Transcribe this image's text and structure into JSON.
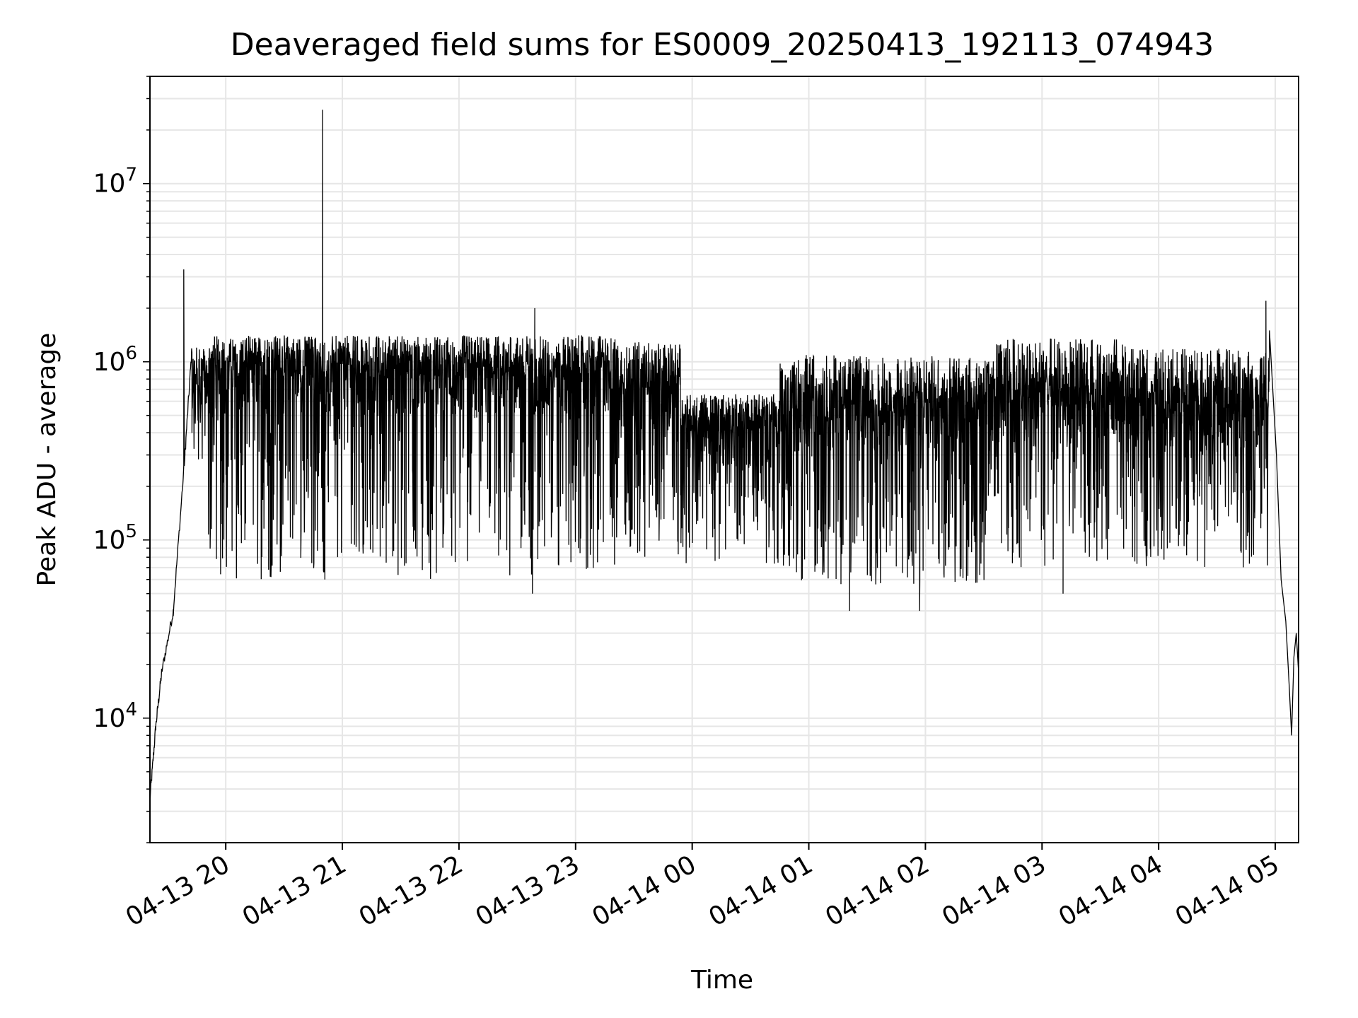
{
  "chart_data": {
    "type": "line",
    "title": "Deaveraged field sums for ES0009_20250413_192113_074943",
    "xlabel": "Time",
    "ylabel": "Peak ADU - average",
    "yscale": "log",
    "ylim": [
      2000,
      40000000
    ],
    "xlim_hours_from_20250413_1921": [
      0,
      9.85
    ],
    "grid": "major and minor",
    "line_color": "#000000",
    "x_ticks": [
      {
        "label": "04-13 20",
        "hour": 0.65
      },
      {
        "label": "04-13 21",
        "hour": 1.65
      },
      {
        "label": "04-13 22",
        "hour": 2.65
      },
      {
        "label": "04-13 23",
        "hour": 3.65
      },
      {
        "label": "04-14 00",
        "hour": 4.65
      },
      {
        "label": "04-14 01",
        "hour": 5.65
      },
      {
        "label": "04-14 02",
        "hour": 6.65
      },
      {
        "label": "04-14 03",
        "hour": 7.65
      },
      {
        "label": "04-14 04",
        "hour": 8.65
      },
      {
        "label": "04-14 05",
        "hour": 9.65
      }
    ],
    "y_ticks": [
      {
        "base": "10",
        "exp": "4",
        "value": 10000
      },
      {
        "base": "10",
        "exp": "5",
        "value": 100000
      },
      {
        "base": "10",
        "exp": "6",
        "value": 1000000
      },
      {
        "base": "10",
        "exp": "7",
        "value": 10000000
      }
    ],
    "series": [
      {
        "name": "field sums",
        "segments": [
          {
            "h0": 0.0,
            "h1": 0.05,
            "v0": 3500,
            "v1": 9000
          },
          {
            "h0": 0.05,
            "h1": 0.1,
            "v0": 9000,
            "v1": 18000
          },
          {
            "h0": 0.1,
            "h1": 0.2,
            "v0": 18000,
            "v1": 40000
          },
          {
            "h0": 0.2,
            "h1": 0.3,
            "v0": 40000,
            "v1": 300000
          },
          {
            "h0": 0.3,
            "h1": 0.36,
            "v0": 300000,
            "v1": 1200000
          }
        ],
        "noise_envelopes": [
          {
            "h0": 0.36,
            "h1": 0.5,
            "base": 700000,
            "low": 250000,
            "high": 1300000
          },
          {
            "h0": 0.5,
            "h1": 4.0,
            "base": 800000,
            "low": 60000,
            "high": 1500000
          },
          {
            "h0": 4.0,
            "h1": 4.55,
            "base": 650000,
            "low": 80000,
            "high": 1400000
          },
          {
            "h0": 4.55,
            "h1": 5.4,
            "base": 400000,
            "low": 70000,
            "high": 700000
          },
          {
            "h0": 5.4,
            "h1": 7.2,
            "base": 480000,
            "low": 55000,
            "high": 1200000
          },
          {
            "h0": 7.2,
            "h1": 8.4,
            "base": 550000,
            "low": 70000,
            "high": 1500000
          },
          {
            "h0": 8.4,
            "h1": 9.6,
            "base": 520000,
            "low": 70000,
            "high": 1300000
          }
        ],
        "spikes": [
          {
            "hour": 0.29,
            "value": 3300000
          },
          {
            "hour": 1.48,
            "value": 26000000
          },
          {
            "hour": 1.5,
            "value": 60000
          },
          {
            "hour": 3.3,
            "value": 2000000
          },
          {
            "hour": 3.28,
            "value": 50000
          },
          {
            "hour": 6.0,
            "value": 40000
          },
          {
            "hour": 6.6,
            "value": 40000
          },
          {
            "hour": 7.83,
            "value": 50000
          },
          {
            "hour": 9.57,
            "value": 2200000
          }
        ],
        "tail": [
          {
            "hour": 9.6,
            "value": 1500000
          },
          {
            "hour": 9.66,
            "value": 300000
          },
          {
            "hour": 9.7,
            "value": 60000
          },
          {
            "hour": 9.74,
            "value": 35000
          },
          {
            "hour": 9.77,
            "value": 15000
          },
          {
            "hour": 9.79,
            "value": 8000
          },
          {
            "hour": 9.81,
            "value": 22000
          },
          {
            "hour": 9.83,
            "value": 30000
          },
          {
            "hour": 9.85,
            "value": 18000
          }
        ]
      }
    ]
  }
}
